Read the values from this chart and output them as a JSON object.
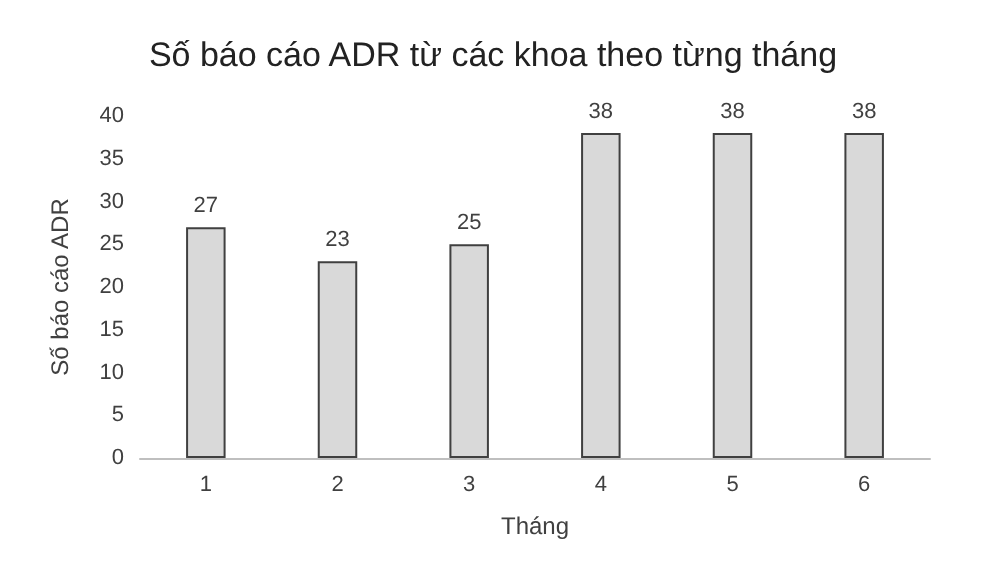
{
  "chart_data": {
    "type": "bar",
    "title": "Số báo cáo ADR từ các khoa theo từng tháng",
    "xlabel": "Tháng",
    "ylabel": "Số báo cáo ADR",
    "categories": [
      "1",
      "2",
      "3",
      "4",
      "5",
      "6"
    ],
    "values": [
      27,
      23,
      25,
      38,
      38,
      38
    ],
    "color": "#d9d9d9",
    "ylim": [
      0,
      40
    ],
    "yticks": [
      0,
      5,
      10,
      15,
      20,
      25,
      30,
      35,
      40
    ],
    "grid": false,
    "data_labels": true
  }
}
